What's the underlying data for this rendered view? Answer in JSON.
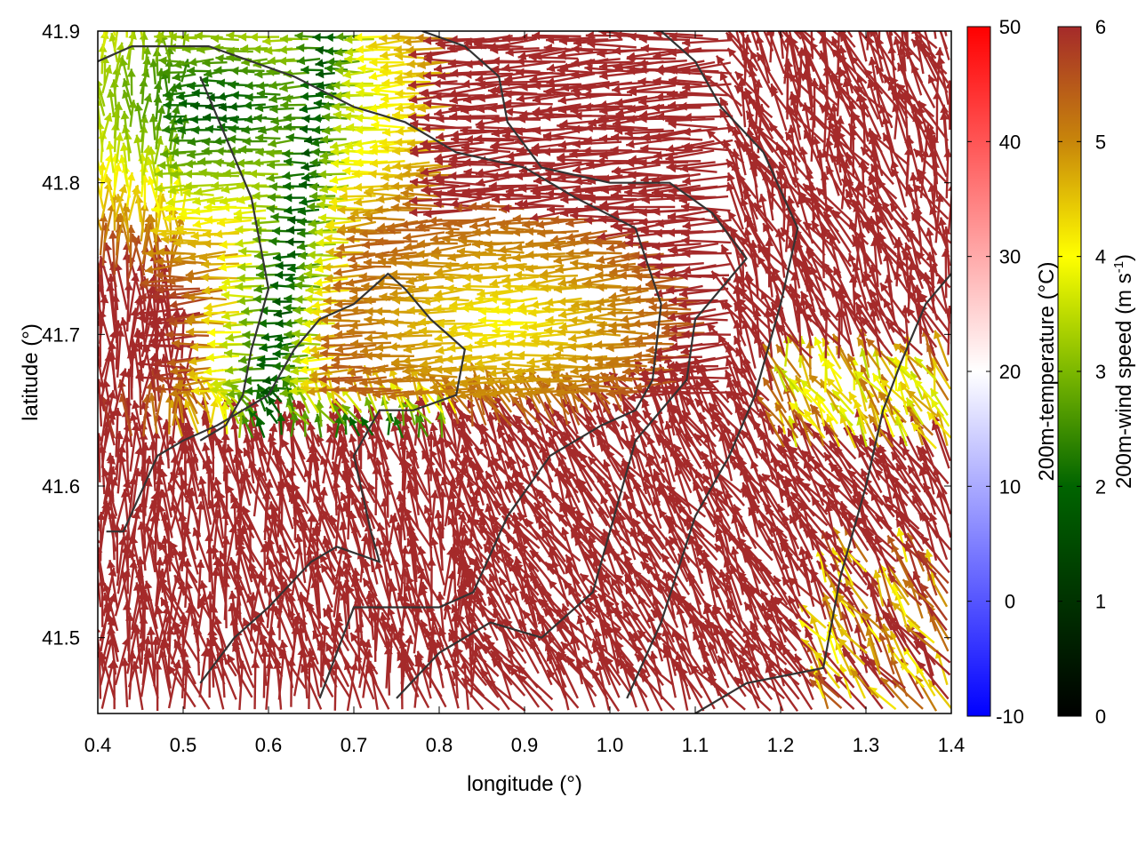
{
  "chart_data": {
    "type": "quiver",
    "xlabel": "longitude (°)",
    "ylabel": "latitude (°)",
    "xlim": [
      0.4,
      1.4
    ],
    "ylim": [
      41.45,
      41.9
    ],
    "xticks": [
      {
        "value": 0.4,
        "label": "0.4"
      },
      {
        "value": 0.5,
        "label": "0.5"
      },
      {
        "value": 0.6,
        "label": "0.6"
      },
      {
        "value": 0.7,
        "label": "0.7"
      },
      {
        "value": 0.8,
        "label": "0.8"
      },
      {
        "value": 0.9,
        "label": "0.9"
      },
      {
        "value": 1.0,
        "label": "1.0"
      },
      {
        "value": 1.1,
        "label": "1.1"
      },
      {
        "value": 1.2,
        "label": "1.2"
      },
      {
        "value": 1.3,
        "label": "1.3"
      },
      {
        "value": 1.4,
        "label": "1.4"
      }
    ],
    "yticks": [
      {
        "value": 41.5,
        "label": "41.5"
      },
      {
        "value": 41.6,
        "label": "41.6"
      },
      {
        "value": 41.7,
        "label": "41.7"
      },
      {
        "value": 41.8,
        "label": "41.8"
      },
      {
        "value": 41.9,
        "label": "41.9"
      }
    ],
    "colorbars": [
      {
        "label": "200m-temperature (°C)",
        "range": [
          -10,
          50
        ],
        "ticks": [
          {
            "value": -10,
            "label": "-10"
          },
          {
            "value": 0,
            "label": "0"
          },
          {
            "value": 10,
            "label": "10"
          },
          {
            "value": 20,
            "label": "20"
          },
          {
            "value": 30,
            "label": "30"
          },
          {
            "value": 40,
            "label": "40"
          },
          {
            "value": 50,
            "label": "50"
          }
        ],
        "colors": [
          "#0000ff",
          "#ffffff",
          "#ff0000"
        ]
      },
      {
        "label": "200m-wind speed (m s",
        "label_sup": "-1",
        "label_end": ")",
        "range": [
          0,
          6
        ],
        "ticks": [
          {
            "value": 0,
            "label": "0"
          },
          {
            "value": 1,
            "label": "1"
          },
          {
            "value": 2,
            "label": "2"
          },
          {
            "value": 3,
            "label": "3"
          },
          {
            "value": 4,
            "label": "4"
          },
          {
            "value": 5,
            "label": "5"
          },
          {
            "value": 6,
            "label": "6"
          }
        ],
        "colors": [
          "#000000",
          "#006400",
          "#7cb800",
          "#ffff00",
          "#c8860a",
          "#a52a2a"
        ]
      }
    ],
    "wind_field": {
      "description_regions": [
        {
          "type": "low_wind_belt",
          "center_lon": 0.62,
          "center_lat": 41.72,
          "speed": 2.5
        },
        {
          "type": "moderate_oval",
          "center_lon": 0.9,
          "center_lat": 41.71,
          "speed": 4.6
        }
      ],
      "typical_speed": 6
    },
    "contours": [
      [
        [
          0.41,
          41.57
        ],
        [
          0.43,
          41.57
        ],
        [
          0.47,
          41.62
        ],
        [
          0.5,
          41.63
        ],
        [
          0.54,
          41.64
        ],
        [
          0.6,
          41.66
        ],
        [
          0.63,
          41.69
        ],
        [
          0.66,
          41.71
        ],
        [
          0.7,
          41.72
        ],
        [
          0.74,
          41.74
        ],
        [
          0.76,
          41.73
        ],
        [
          0.79,
          41.71
        ],
        [
          0.83,
          41.69
        ],
        [
          0.82,
          41.66
        ],
        [
          0.77,
          41.65
        ],
        [
          0.73,
          41.65
        ],
        [
          0.7,
          41.62
        ],
        [
          0.72,
          41.57
        ],
        [
          0.73,
          41.55
        ],
        [
          0.68,
          41.56
        ],
        [
          0.65,
          41.55
        ],
        [
          0.6,
          41.52
        ],
        [
          0.56,
          41.5
        ],
        [
          0.52,
          41.47
        ]
      ],
      [
        [
          0.66,
          41.46
        ],
        [
          0.7,
          41.52
        ],
        [
          0.75,
          41.52
        ],
        [
          0.8,
          41.52
        ],
        [
          0.84,
          41.53
        ],
        [
          0.88,
          41.58
        ],
        [
          0.93,
          41.62
        ],
        [
          0.99,
          41.64
        ],
        [
          1.03,
          41.65
        ],
        [
          1.05,
          41.67
        ],
        [
          1.06,
          41.72
        ],
        [
          1.03,
          41.77
        ],
        [
          0.96,
          41.79
        ],
        [
          0.9,
          41.81
        ],
        [
          0.82,
          41.82
        ],
        [
          0.76,
          41.84
        ],
        [
          0.7,
          41.85
        ],
        [
          0.63,
          41.87
        ],
        [
          0.58,
          41.88
        ],
        [
          0.53,
          41.89
        ],
        [
          0.44,
          41.89
        ],
        [
          0.4,
          41.88
        ]
      ],
      [
        [
          0.75,
          41.46
        ],
        [
          0.8,
          41.49
        ],
        [
          0.86,
          41.51
        ],
        [
          0.92,
          41.5
        ],
        [
          0.98,
          41.53
        ],
        [
          1.0,
          41.57
        ],
        [
          1.03,
          41.63
        ],
        [
          1.09,
          41.67
        ],
        [
          1.1,
          41.71
        ],
        [
          1.16,
          41.75
        ],
        [
          1.12,
          41.78
        ],
        [
          1.07,
          41.8
        ],
        [
          1.0,
          41.8
        ],
        [
          0.92,
          41.81
        ],
        [
          0.88,
          41.84
        ],
        [
          0.87,
          41.87
        ],
        [
          0.83,
          41.89
        ],
        [
          0.78,
          41.9
        ]
      ],
      [
        [
          1.02,
          41.46
        ],
        [
          1.06,
          41.51
        ],
        [
          1.1,
          41.58
        ],
        [
          1.14,
          41.62
        ],
        [
          1.17,
          41.66
        ],
        [
          1.2,
          41.72
        ],
        [
          1.22,
          41.77
        ],
        [
          1.18,
          41.82
        ],
        [
          1.13,
          41.85
        ],
        [
          1.1,
          41.88
        ],
        [
          1.06,
          41.9
        ]
      ],
      [
        [
          1.1,
          41.45
        ],
        [
          1.16,
          41.47
        ],
        [
          1.25,
          41.48
        ],
        [
          1.27,
          41.54
        ],
        [
          1.3,
          41.6
        ],
        [
          1.32,
          41.65
        ],
        [
          1.34,
          41.68
        ],
        [
          1.37,
          41.72
        ],
        [
          1.4,
          41.74
        ]
      ],
      [
        [
          0.52,
          41.87
        ],
        [
          0.55,
          41.83
        ],
        [
          0.58,
          41.79
        ],
        [
          0.6,
          41.73
        ],
        [
          0.58,
          41.69
        ],
        [
          0.57,
          41.66
        ],
        [
          0.55,
          41.64
        ],
        [
          0.52,
          41.63
        ]
      ]
    ]
  }
}
